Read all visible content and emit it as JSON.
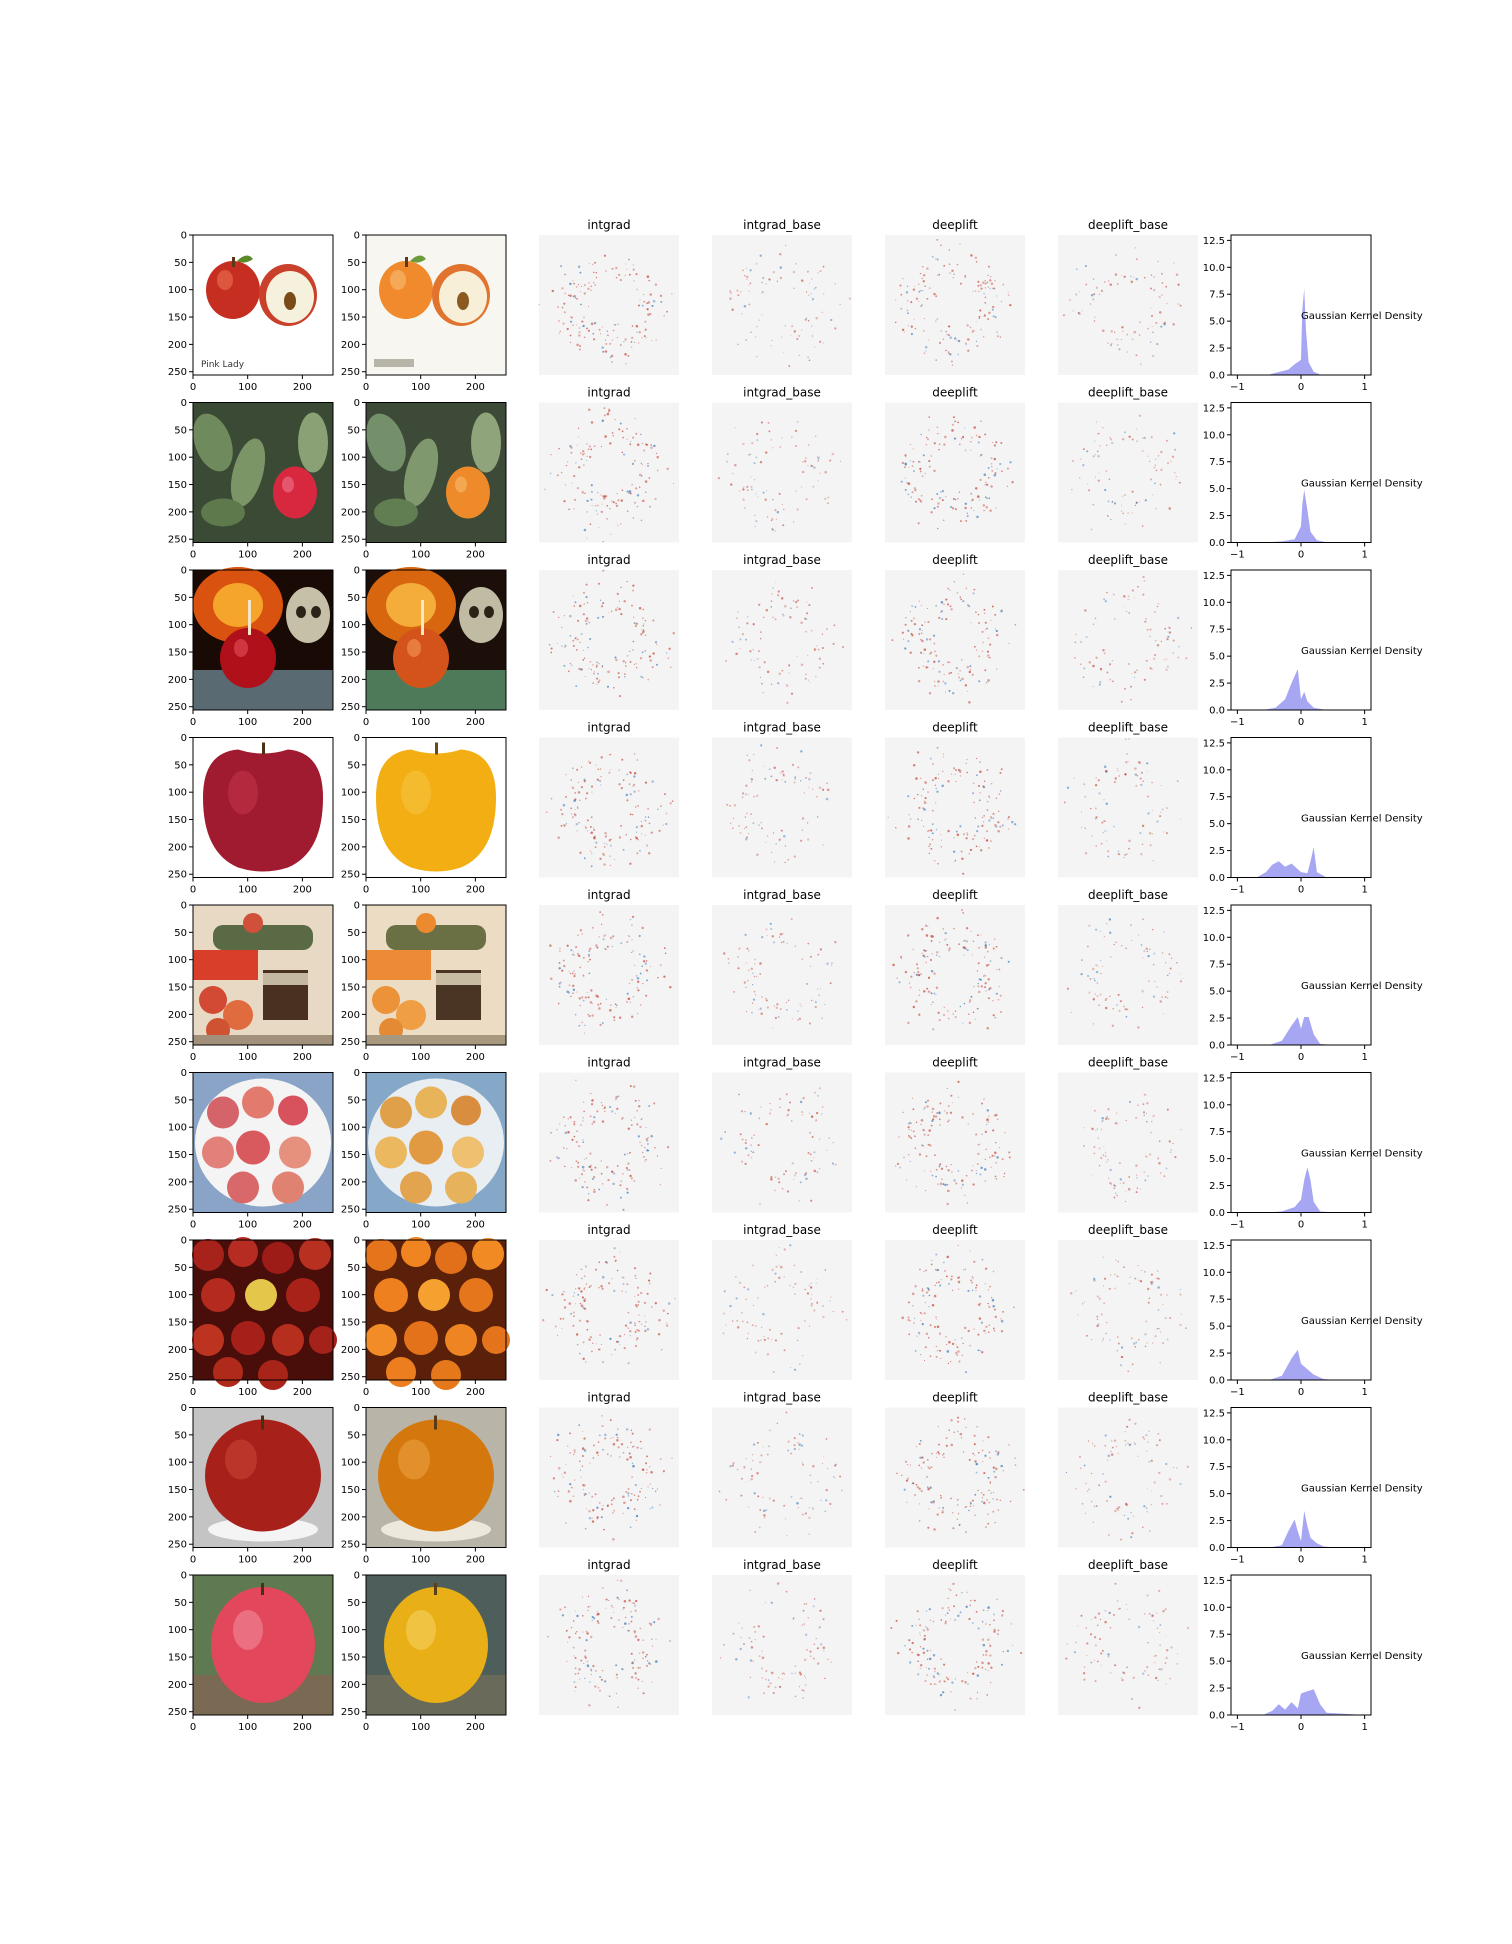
{
  "panel_titles": [
    "intgrad",
    "intgrad_base",
    "deeplift",
    "deeplift_base"
  ],
  "image_axes": {
    "ticks": [
      0,
      100,
      200
    ],
    "yticks": [
      0,
      50,
      100,
      150,
      200,
      250
    ],
    "xlim": [
      0,
      256
    ],
    "ylim": [
      0,
      256
    ]
  },
  "image_label_text": "Pink Lady",
  "density_label": "Gaussian Kernel Density",
  "colors": {
    "density_fill": "#a6a6f2",
    "attr_positive": "#c0392b",
    "attr_negative": "#2c6fb3",
    "axis": "#000000",
    "panel_bg": "#f4f4f4"
  },
  "rows": [
    {
      "original": "red apple and half apple, white background",
      "transformed": "orange-tinted apples, white background"
    },
    {
      "original": "red apple on tree with green leaves",
      "transformed": "orange apple on tree with green leaves"
    },
    {
      "original": "red candy apple with pumpkin and skull",
      "transformed": "orange candy apple with pumpkin and skull"
    },
    {
      "original": "single red apple, white background",
      "transformed": "single yellow apple, white background"
    },
    {
      "original": "apples on table with jar",
      "transformed": "oranges on table with jar"
    },
    {
      "original": "plate of red-green apples",
      "transformed": "plate of orange-tinted apples"
    },
    {
      "original": "pile of red apples",
      "transformed": "pile of oranges"
    },
    {
      "original": "single red apple, grey background",
      "transformed": "single orange apple, grey background"
    },
    {
      "original": "pink apple among grass",
      "transformed": "yellow apple among grass"
    }
  ],
  "chart_data": {
    "type": "area",
    "title": "Gaussian Kernel Density",
    "xlim": [
      -1.1,
      1.1
    ],
    "ylim": [
      0,
      13
    ],
    "xticks": [
      -1,
      0,
      1
    ],
    "yticks": [
      0.0,
      2.5,
      5.0,
      7.5,
      10.0,
      12.5
    ],
    "grid": false,
    "series": [
      {
        "x": [
          -1.0,
          -0.5,
          -0.2,
          -0.1,
          0.0,
          0.02,
          0.05,
          0.08,
          0.12,
          0.2,
          0.3,
          0.5,
          1.0
        ],
        "values": [
          0.0,
          0.05,
          0.5,
          1.0,
          1.4,
          6.0,
          8.0,
          4.0,
          1.2,
          0.3,
          0.05,
          0.0,
          0.0
        ]
      },
      {
        "x": [
          -1.0,
          -0.6,
          -0.3,
          -0.1,
          0.0,
          0.02,
          0.05,
          0.1,
          0.15,
          0.25,
          0.4,
          1.0
        ],
        "values": [
          0.0,
          0.0,
          0.1,
          0.3,
          1.5,
          3.5,
          4.9,
          3.0,
          1.0,
          0.2,
          0.02,
          0.0
        ]
      },
      {
        "x": [
          -1.0,
          -0.6,
          -0.4,
          -0.25,
          -0.15,
          -0.05,
          0.0,
          0.05,
          0.1,
          0.2,
          0.4,
          1.0
        ],
        "values": [
          0.0,
          0.0,
          0.2,
          1.0,
          2.5,
          3.8,
          1.0,
          1.7,
          0.8,
          0.2,
          0.0,
          0.0
        ]
      },
      {
        "x": [
          -1.0,
          -0.7,
          -0.55,
          -0.45,
          -0.35,
          -0.25,
          -0.15,
          0.0,
          0.1,
          0.15,
          0.2,
          0.25,
          0.4,
          1.0
        ],
        "values": [
          0.0,
          0.0,
          0.5,
          1.2,
          1.5,
          1.0,
          1.3,
          0.5,
          0.4,
          1.5,
          2.8,
          0.5,
          0.0,
          0.0
        ]
      },
      {
        "x": [
          -1.0,
          -0.5,
          -0.3,
          -0.15,
          -0.05,
          0.0,
          0.05,
          0.12,
          0.2,
          0.3,
          0.5,
          1.0
        ],
        "values": [
          0.0,
          0.0,
          0.4,
          1.8,
          2.6,
          1.5,
          2.6,
          2.6,
          1.0,
          0.1,
          0.0,
          0.0
        ]
      },
      {
        "x": [
          -1.0,
          -0.5,
          -0.3,
          -0.1,
          0.0,
          0.05,
          0.1,
          0.15,
          0.2,
          0.3,
          0.5,
          1.0
        ],
        "values": [
          0.0,
          0.0,
          0.1,
          0.5,
          1.2,
          3.0,
          4.2,
          3.0,
          1.0,
          0.1,
          0.0,
          0.0
        ]
      },
      {
        "x": [
          -1.0,
          -0.5,
          -0.3,
          -0.15,
          -0.05,
          0.0,
          0.1,
          0.2,
          0.35,
          0.5,
          1.0
        ],
        "values": [
          0.0,
          0.0,
          0.4,
          2.0,
          2.8,
          1.5,
          1.0,
          0.5,
          0.1,
          0.0,
          0.0
        ]
      },
      {
        "x": [
          -1.0,
          -0.5,
          -0.3,
          -0.2,
          -0.1,
          -0.05,
          0.0,
          0.05,
          0.1,
          0.15,
          0.25,
          0.35,
          0.5,
          1.0
        ],
        "values": [
          0.0,
          0.0,
          0.2,
          1.5,
          2.6,
          1.5,
          0.6,
          3.4,
          2.0,
          0.9,
          0.4,
          0.1,
          0.0,
          0.0
        ]
      },
      {
        "x": [
          -1.0,
          -0.6,
          -0.45,
          -0.35,
          -0.25,
          -0.15,
          -0.05,
          0.0,
          0.1,
          0.2,
          0.3,
          0.4,
          1.0
        ],
        "values": [
          0.0,
          0.0,
          0.4,
          1.0,
          0.5,
          1.2,
          0.6,
          2.0,
          2.2,
          2.4,
          1.0,
          0.2,
          0.0
        ]
      }
    ]
  }
}
